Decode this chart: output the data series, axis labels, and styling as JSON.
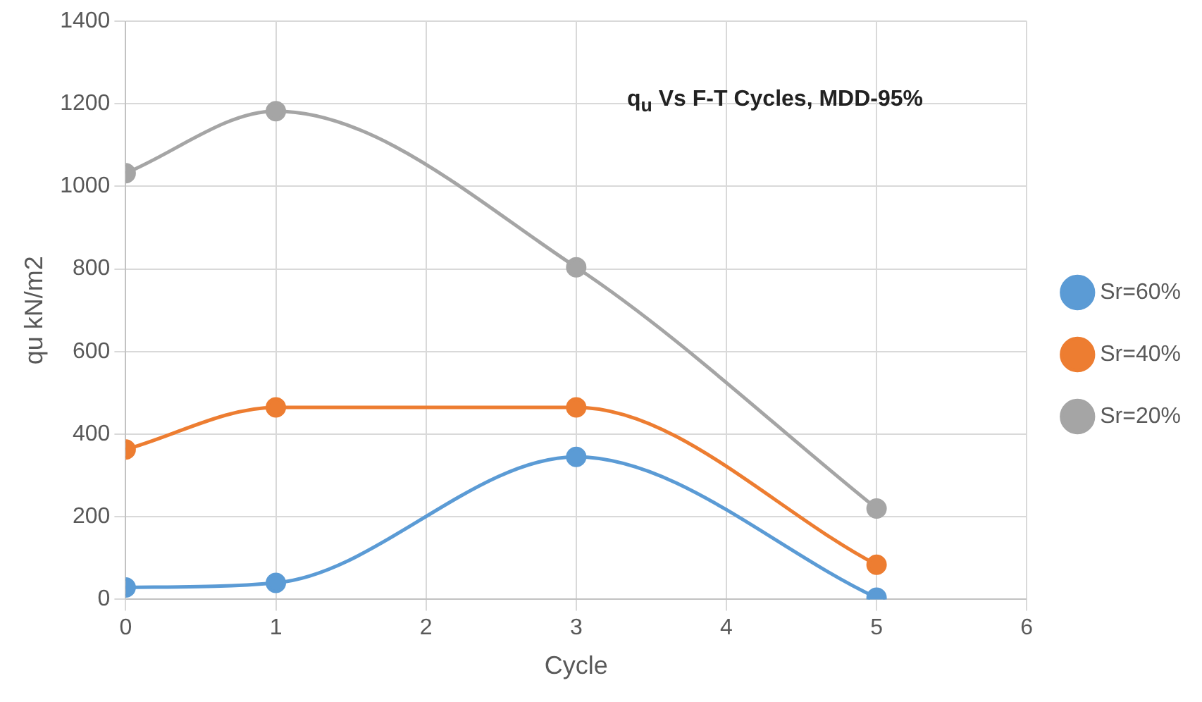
{
  "chart_data": {
    "type": "line",
    "title": "q$_{u}$ Vs F-T Cycles, MDD-95%",
    "xlabel": "Cycle",
    "ylabel": "qu kN/m2",
    "x": [
      0,
      1,
      3,
      5
    ],
    "series": [
      {
        "name": "Sr=60%",
        "color": "#5b9bd5",
        "values": [
          29,
          40,
          345,
          4
        ]
      },
      {
        "name": "Sr=40%",
        "color": "#ed7d31",
        "values": [
          363,
          465,
          465,
          84
        ]
      },
      {
        "name": "Sr=20%",
        "color": "#a5a5a5",
        "values": [
          1032,
          1182,
          804,
          220
        ]
      }
    ],
    "xlim": [
      0,
      6
    ],
    "xticks": [
      0,
      1,
      2,
      3,
      4,
      5,
      6
    ],
    "ylim": [
      0,
      1400
    ],
    "yticks": [
      0,
      200,
      400,
      600,
      800,
      1000,
      1200,
      1400
    ],
    "grid": true,
    "legend": "right",
    "marker": "circle",
    "line_style": "solid"
  }
}
